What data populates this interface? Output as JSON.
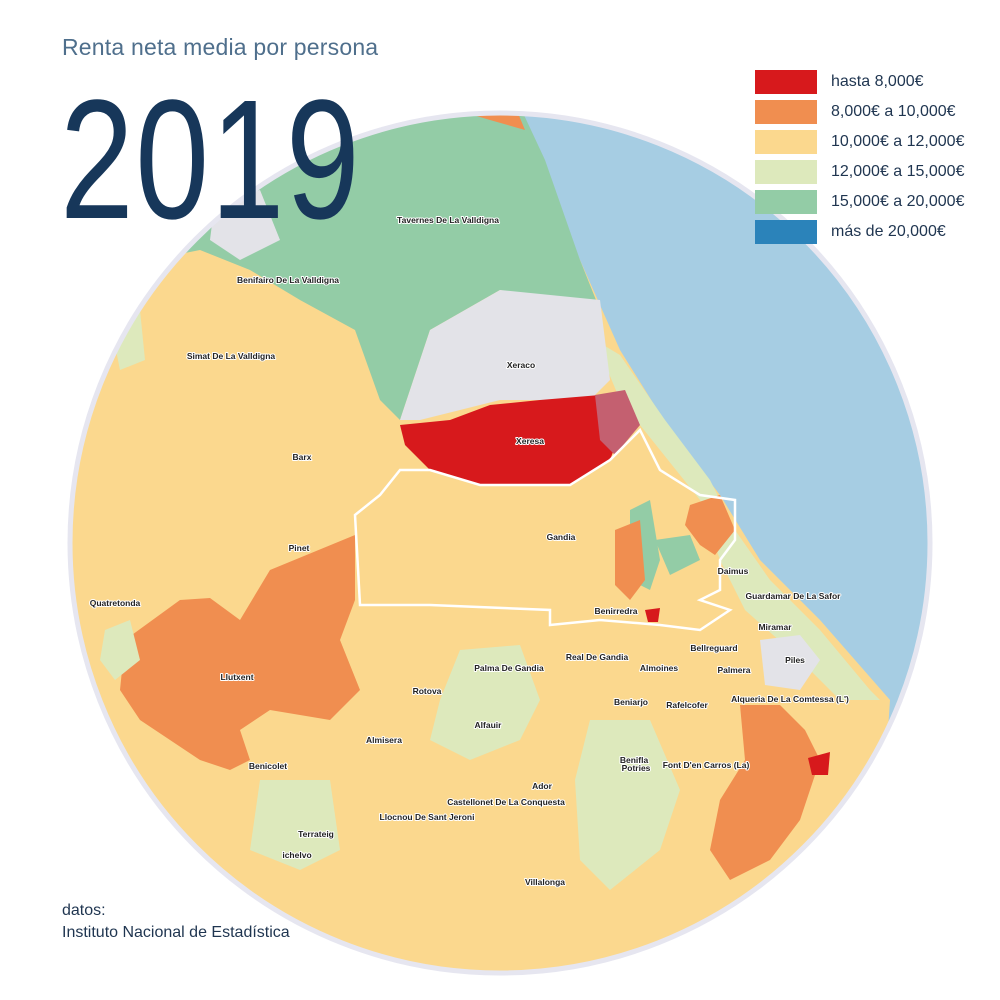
{
  "header": {
    "subtitle": "Renta neta media por persona",
    "year": "2019"
  },
  "legend": [
    {
      "label": "hasta 8,000€",
      "color": "#d7191c"
    },
    {
      "label": "8,000€ a 10,000€",
      "color": "#f08e50"
    },
    {
      "label": "10,000€ a 12,000€",
      "color": "#fbd88e"
    },
    {
      "label": "12,000€ a 15,000€",
      "color": "#dde9bc"
    },
    {
      "label": "15,000€ a 20,000€",
      "color": "#93cca6"
    },
    {
      "label": "más de 20,000€",
      "color": "#2b83ba"
    }
  ],
  "map": {
    "sea_color": "#a6cde3",
    "no_data_color": "#e3e3e8",
    "places": [
      "Tavernes De La Valldigna",
      "Benifairo De La Valldigna",
      "Simat De La Valldigna",
      "Xeraco",
      "Xeresa",
      "Barx",
      "Gandia",
      "Pinet",
      "Quatretonda",
      "Daimus",
      "Guardamar De La Safor",
      "Benirredra",
      "Miramar",
      "Bellreguard",
      "Real De Gandia",
      "Almoines",
      "Palmera",
      "Piles",
      "Palma De Gandia",
      "Llutxent",
      "Rotova",
      "Beniarjo",
      "Rafelcofer",
      "Alqueria De La Comtessa (L')",
      "Alfauir",
      "Almisera",
      "Benifla",
      "Benicolet",
      "Font D'en Carros (La)",
      "Potries",
      "Ador",
      "Castellonet De La Conquesta",
      "Llocnou De Sant Jeroni",
      "Terrateig",
      "ichelvo",
      "Villalonga"
    ]
  },
  "source": {
    "label": "datos:",
    "name": "Instituto Nacional de Estadística"
  }
}
